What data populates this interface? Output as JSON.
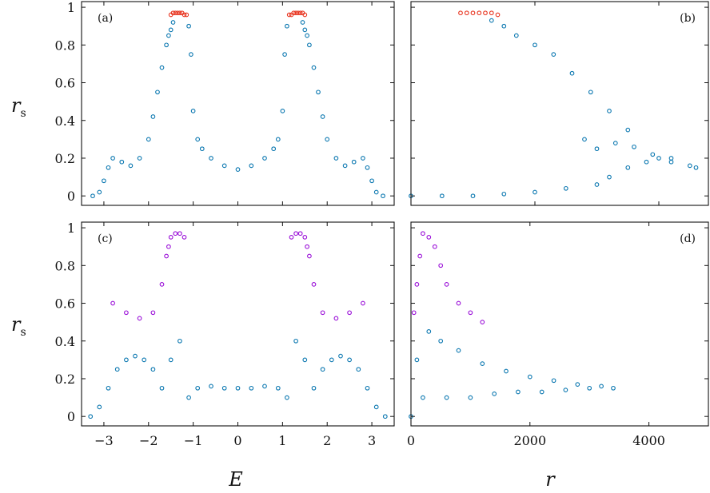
{
  "colors": {
    "base": "#0a77b0",
    "red": "#e8331e",
    "purple": "#9a0fd8"
  },
  "ylabel": {
    "main": "r",
    "sub": "s"
  },
  "chart_data": [
    {
      "panel": "(a)",
      "type": "scatter",
      "xlim": [
        -3.5,
        3.5
      ],
      "ylim": [
        -0.05,
        1.03
      ],
      "xticks": [
        -3,
        -2,
        -1,
        0,
        1,
        2,
        3
      ],
      "yticks": [
        0,
        0.2,
        0.4,
        0.6,
        0.8,
        1
      ],
      "ytick_labels": [
        "0",
        "0.2",
        "0.4",
        "0.6",
        "0.8",
        "1"
      ],
      "series": [
        {
          "color": "base",
          "x": [
            -3.25,
            -3.1,
            -3.0,
            -2.9,
            -2.8,
            -2.6,
            -2.4,
            -2.2,
            -2.0,
            -1.9,
            -1.8,
            -1.7,
            -1.6,
            -1.55,
            -1.5,
            -1.45,
            -1.1,
            -1.05,
            -1.0,
            -0.9,
            -0.8,
            -0.6,
            -0.3,
            0.0,
            0.3,
            0.6,
            0.8,
            0.9,
            1.0,
            1.05,
            1.1,
            1.45,
            1.5,
            1.55,
            1.6,
            1.7,
            1.8,
            1.9,
            2.0,
            2.2,
            2.4,
            2.6,
            2.8,
            2.9,
            3.0,
            3.1,
            3.25
          ],
          "y": [
            0.0,
            0.02,
            0.08,
            0.15,
            0.2,
            0.18,
            0.16,
            0.2,
            0.3,
            0.42,
            0.55,
            0.68,
            0.8,
            0.85,
            0.88,
            0.92,
            0.9,
            0.75,
            0.45,
            0.3,
            0.25,
            0.2,
            0.16,
            0.14,
            0.16,
            0.2,
            0.25,
            0.3,
            0.45,
            0.75,
            0.9,
            0.92,
            0.88,
            0.85,
            0.8,
            0.68,
            0.55,
            0.42,
            0.3,
            0.2,
            0.16,
            0.18,
            0.2,
            0.15,
            0.08,
            0.02,
            0.0
          ]
        },
        {
          "color": "red",
          "x": [
            -1.5,
            -1.45,
            -1.4,
            -1.35,
            -1.3,
            -1.25,
            -1.2,
            -1.15,
            1.15,
            1.2,
            1.25,
            1.3,
            1.35,
            1.4,
            1.45,
            1.5
          ],
          "y": [
            0.96,
            0.97,
            0.97,
            0.97,
            0.97,
            0.97,
            0.96,
            0.96,
            0.96,
            0.96,
            0.97,
            0.97,
            0.97,
            0.97,
            0.97,
            0.96
          ]
        }
      ]
    },
    {
      "panel": "(b)",
      "type": "scatter",
      "xlim": [
        0,
        4800
      ],
      "ylim": [
        -0.05,
        1.03
      ],
      "xticks": [
        0,
        2000,
        4000
      ],
      "yticks": [
        0,
        0.2,
        0.4,
        0.6,
        0.8,
        1
      ],
      "series": [
        {
          "color": "base",
          "x": [
            0,
            500,
            1000,
            1500,
            2000,
            2500,
            3000,
            3200,
            3500,
            3800,
            4000,
            4200,
            4500,
            4600,
            1300,
            1500,
            1700,
            2000,
            2300,
            2600,
            2900,
            3200,
            3500,
            2800,
            3000,
            3300,
            3600,
            3900,
            4200
          ],
          "y": [
            0.0,
            0.0,
            0.0,
            0.01,
            0.02,
            0.04,
            0.06,
            0.1,
            0.15,
            0.18,
            0.2,
            0.18,
            0.16,
            0.15,
            0.93,
            0.9,
            0.85,
            0.8,
            0.75,
            0.65,
            0.55,
            0.45,
            0.35,
            0.3,
            0.25,
            0.28,
            0.26,
            0.22,
            0.2
          ]
        },
        {
          "color": "red",
          "x": [
            800,
            900,
            1000,
            1100,
            1200,
            1300,
            1400
          ],
          "y": [
            0.97,
            0.97,
            0.97,
            0.97,
            0.97,
            0.97,
            0.96
          ]
        }
      ]
    },
    {
      "panel": "(c)",
      "type": "scatter",
      "xlim": [
        -3.5,
        3.5
      ],
      "ylim": [
        -0.05,
        1.03
      ],
      "xticks": [
        -3,
        -2,
        -1,
        0,
        1,
        2,
        3
      ],
      "xtick_labels": [
        "−3",
        "−2",
        "−1",
        "0",
        "1",
        "2",
        "3"
      ],
      "yticks": [
        0,
        0.2,
        0.4,
        0.6,
        0.8,
        1
      ],
      "ytick_labels": [
        "0",
        "0.2",
        "0.4",
        "0.6",
        "0.8",
        "1"
      ],
      "xlabel": "E",
      "series": [
        {
          "color": "base",
          "x": [
            -3.3,
            -3.1,
            -2.9,
            -2.7,
            -2.5,
            -2.3,
            -2.1,
            -1.9,
            -1.7,
            -1.5,
            -1.3,
            -1.1,
            -0.9,
            -0.6,
            -0.3,
            0.0,
            0.3,
            0.6,
            0.9,
            1.1,
            1.3,
            1.5,
            1.7,
            1.9,
            2.1,
            2.3,
            2.5,
            2.7,
            2.9,
            3.1,
            3.3
          ],
          "y": [
            0.0,
            0.05,
            0.15,
            0.25,
            0.3,
            0.32,
            0.3,
            0.25,
            0.15,
            0.3,
            0.4,
            0.1,
            0.15,
            0.16,
            0.15,
            0.15,
            0.15,
            0.16,
            0.15,
            0.1,
            0.4,
            0.3,
            0.15,
            0.25,
            0.3,
            0.32,
            0.3,
            0.25,
            0.15,
            0.05,
            0.0
          ]
        },
        {
          "color": "purple",
          "x": [
            -2.8,
            -2.5,
            -2.2,
            -1.9,
            -1.7,
            -1.6,
            -1.55,
            -1.5,
            -1.4,
            -1.3,
            -1.2,
            1.2,
            1.3,
            1.4,
            1.5,
            1.55,
            1.6,
            1.7,
            1.9,
            2.2,
            2.5,
            2.8
          ],
          "y": [
            0.6,
            0.55,
            0.52,
            0.55,
            0.7,
            0.85,
            0.9,
            0.95,
            0.97,
            0.97,
            0.95,
            0.95,
            0.97,
            0.97,
            0.95,
            0.9,
            0.85,
            0.7,
            0.55,
            0.52,
            0.55,
            0.6
          ]
        }
      ]
    },
    {
      "panel": "(d)",
      "type": "scatter",
      "xlim": [
        0,
        5000
      ],
      "ylim": [
        -0.05,
        1.03
      ],
      "xticks": [
        0,
        2000,
        4000
      ],
      "xtick_labels": [
        "0",
        "2000",
        "4000"
      ],
      "yticks": [
        0,
        0.2,
        0.4,
        0.6,
        0.8,
        1
      ],
      "xlabel": "r",
      "series": [
        {
          "color": "base",
          "x": [
            0,
            100,
            300,
            500,
            800,
            1200,
            1600,
            2000,
            2400,
            2800,
            3200,
            3400,
            200,
            600,
            1000,
            1400,
            1800,
            2200,
            2600,
            3000
          ],
          "y": [
            0.0,
            0.3,
            0.45,
            0.4,
            0.35,
            0.28,
            0.24,
            0.21,
            0.19,
            0.17,
            0.16,
            0.15,
            0.1,
            0.1,
            0.1,
            0.12,
            0.13,
            0.13,
            0.14,
            0.15
          ]
        },
        {
          "color": "purple",
          "x": [
            50,
            100,
            150,
            200,
            300,
            400,
            500,
            600,
            800,
            1000,
            1200
          ],
          "y": [
            0.55,
            0.7,
            0.85,
            0.97,
            0.95,
            0.9,
            0.8,
            0.7,
            0.6,
            0.55,
            0.5
          ]
        }
      ]
    }
  ]
}
